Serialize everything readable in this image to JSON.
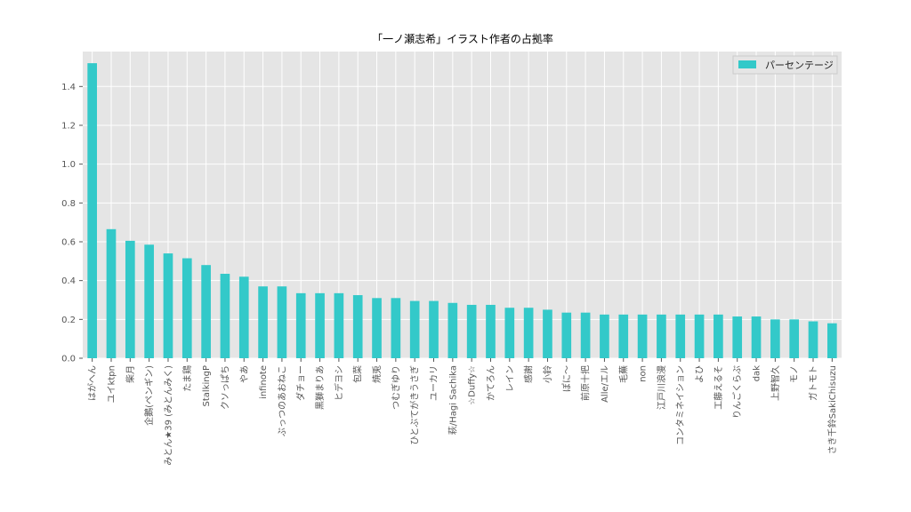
{
  "chart_data": {
    "type": "bar",
    "title": "「一ノ瀬志希」イラスト作者の占拠率",
    "xlabel": "",
    "ylabel": "",
    "ylim": [
      0,
      1.58
    ],
    "yticks": [
      "0.0",
      "0.2",
      "0.4",
      "0.6",
      "0.8",
      "1.0",
      "1.2",
      "1.4"
    ],
    "grid": true,
    "legend_position": "top-right",
    "colors": {
      "bar": "#33c9c9",
      "plot_bg": "#e5e5e5",
      "grid": "#ffffff"
    },
    "categories": [
      "はがへん",
      "ユイktpn",
      "柴月",
      "企鵝(ペンギン)",
      "みとん★39 (みとんみく)",
      "たま鶏",
      "StalkingP",
      "クソっぱち",
      "やあ",
      "infinote",
      "ぶっつのあおねこ",
      "ダチョー",
      "黒獅まりあ",
      "ヒデヨシ",
      "包菜",
      "焼兎",
      "つむぎゆり",
      "ひとぶてがきうさぎ",
      "ユーカリ",
      "萩/Hagi Sachika",
      "☆Duffy☆",
      "かてろん",
      "レイン",
      "感謝",
      "小鈴",
      "ぽに〜",
      "前原十把",
      "Alle/エル",
      "毛蕪",
      "non",
      "江戸川浪漫",
      "コンタミネイション",
      "よひ",
      "工藤えるそ",
      "りんごくらぶ",
      "dak",
      "上野智久",
      "モノ",
      "ガトモト",
      "さき千鈴SakiChisuzu"
    ],
    "series": [
      {
        "name": "パーセンテージ",
        "values": [
          1.52,
          0.665,
          0.605,
          0.585,
          0.54,
          0.515,
          0.48,
          0.435,
          0.42,
          0.37,
          0.37,
          0.335,
          0.335,
          0.335,
          0.325,
          0.31,
          0.31,
          0.295,
          0.295,
          0.285,
          0.275,
          0.275,
          0.26,
          0.26,
          0.25,
          0.235,
          0.235,
          0.225,
          0.225,
          0.225,
          0.225,
          0.225,
          0.225,
          0.225,
          0.215,
          0.215,
          0.2,
          0.2,
          0.19,
          0.18
        ]
      }
    ]
  }
}
